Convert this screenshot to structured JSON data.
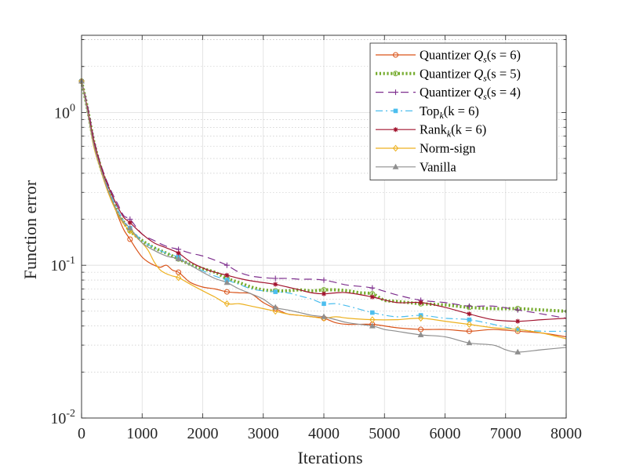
{
  "chart_data": {
    "type": "line",
    "xlabel": "Iterations",
    "ylabel": "Function error",
    "xlim": [
      0,
      8000
    ],
    "ylim": [
      0.01,
      3.2
    ],
    "yscale": "log",
    "grid": true,
    "legend_position": "top-right",
    "x_ticks": [
      0,
      1000,
      2000,
      3000,
      4000,
      5000,
      6000,
      7000,
      8000
    ],
    "x_tick_labels": [
      "0",
      "1000",
      "2000",
      "3000",
      "4000",
      "5000",
      "6000",
      "7000",
      "8000"
    ],
    "y_ticks": [
      {
        "value": 1,
        "base": "10",
        "exp": "0"
      },
      {
        "value": 0.1,
        "base": "10",
        "exp": "-1"
      },
      {
        "value": 0.01,
        "base": "10",
        "exp": "-2"
      }
    ],
    "series": [
      {
        "name": "Quantizer Qs(s = 6)",
        "legend_label": {
          "pre": "Quantizer ",
          "math": "Q",
          "sub": "s",
          "post": "(s = 6)"
        },
        "color": "#D95319",
        "style": "solid",
        "width": 1.2,
        "marker": "circle",
        "points": [
          [
            0,
            1.6
          ],
          [
            100,
            1.05
          ],
          [
            200,
            0.62
          ],
          [
            300,
            0.45
          ],
          [
            400,
            0.34
          ],
          [
            500,
            0.27
          ],
          [
            600,
            0.21
          ],
          [
            700,
            0.17
          ],
          [
            800,
            0.148
          ],
          [
            900,
            0.128
          ],
          [
            1000,
            0.113
          ],
          [
            1100,
            0.105
          ],
          [
            1200,
            0.1
          ],
          [
            1300,
            0.097
          ],
          [
            1400,
            0.1
          ],
          [
            1500,
            0.093
          ],
          [
            1600,
            0.09
          ],
          [
            1700,
            0.083
          ],
          [
            1800,
            0.077
          ],
          [
            2000,
            0.072
          ],
          [
            2200,
            0.07
          ],
          [
            2400,
            0.067
          ],
          [
            2600,
            0.066
          ],
          [
            2800,
            0.065
          ],
          [
            3000,
            0.057
          ],
          [
            3200,
            0.052
          ],
          [
            3400,
            0.048
          ],
          [
            3600,
            0.047
          ],
          [
            3800,
            0.046
          ],
          [
            4000,
            0.045
          ],
          [
            4200,
            0.042
          ],
          [
            4400,
            0.041
          ],
          [
            4800,
            0.041
          ],
          [
            5200,
            0.039
          ],
          [
            5600,
            0.038
          ],
          [
            6000,
            0.038
          ],
          [
            6400,
            0.037
          ],
          [
            6800,
            0.038
          ],
          [
            7200,
            0.037
          ],
          [
            7600,
            0.036
          ],
          [
            8000,
            0.034
          ]
        ]
      },
      {
        "name": "Quantizer Qs(s = 5)",
        "legend_label": {
          "pre": "Quantizer ",
          "math": "Q",
          "sub": "s",
          "post": "(s = 5)"
        },
        "color": "#77AC30",
        "style": "dotted",
        "width": 4,
        "marker": "circle",
        "points": [
          [
            0,
            1.6
          ],
          [
            100,
            1.05
          ],
          [
            200,
            0.65
          ],
          [
            300,
            0.46
          ],
          [
            400,
            0.35
          ],
          [
            500,
            0.28
          ],
          [
            600,
            0.22
          ],
          [
            700,
            0.19
          ],
          [
            800,
            0.168
          ],
          [
            1000,
            0.145
          ],
          [
            1200,
            0.13
          ],
          [
            1400,
            0.12
          ],
          [
            1600,
            0.11
          ],
          [
            1800,
            0.101
          ],
          [
            2000,
            0.095
          ],
          [
            2200,
            0.09
          ],
          [
            2400,
            0.082
          ],
          [
            2600,
            0.077
          ],
          [
            2800,
            0.072
          ],
          [
            3000,
            0.069
          ],
          [
            3200,
            0.068
          ],
          [
            3400,
            0.068
          ],
          [
            3600,
            0.069
          ],
          [
            3800,
            0.068
          ],
          [
            4000,
            0.069
          ],
          [
            4200,
            0.069
          ],
          [
            4400,
            0.068
          ],
          [
            4600,
            0.066
          ],
          [
            4800,
            0.065
          ],
          [
            5000,
            0.059
          ],
          [
            5200,
            0.058
          ],
          [
            5600,
            0.056
          ],
          [
            6000,
            0.055
          ],
          [
            6400,
            0.053
          ],
          [
            6800,
            0.052
          ],
          [
            7200,
            0.052
          ],
          [
            7600,
            0.051
          ],
          [
            8000,
            0.05
          ]
        ]
      },
      {
        "name": "Quantizer Qs(s = 4)",
        "legend_label": {
          "pre": "Quantizer ",
          "math": "Q",
          "sub": "s",
          "post": "(s = 4)"
        },
        "color": "#7E2F8E",
        "style": "dashed",
        "width": 1.2,
        "marker": "plus",
        "points": [
          [
            0,
            1.6
          ],
          [
            100,
            1.1
          ],
          [
            200,
            0.68
          ],
          [
            300,
            0.48
          ],
          [
            400,
            0.37
          ],
          [
            500,
            0.3
          ],
          [
            600,
            0.25
          ],
          [
            700,
            0.21
          ],
          [
            800,
            0.2
          ],
          [
            1000,
            0.16
          ],
          [
            1200,
            0.145
          ],
          [
            1400,
            0.133
          ],
          [
            1600,
            0.127
          ],
          [
            1800,
            0.12
          ],
          [
            2000,
            0.115
          ],
          [
            2200,
            0.108
          ],
          [
            2400,
            0.1
          ],
          [
            2600,
            0.09
          ],
          [
            2800,
            0.085
          ],
          [
            3000,
            0.083
          ],
          [
            3200,
            0.082
          ],
          [
            3400,
            0.082
          ],
          [
            3600,
            0.081
          ],
          [
            3800,
            0.081
          ],
          [
            4000,
            0.08
          ],
          [
            4200,
            0.077
          ],
          [
            4400,
            0.074
          ],
          [
            4800,
            0.071
          ],
          [
            5200,
            0.064
          ],
          [
            5600,
            0.059
          ],
          [
            6000,
            0.057
          ],
          [
            6400,
            0.054
          ],
          [
            6800,
            0.054
          ],
          [
            7200,
            0.051
          ],
          [
            7600,
            0.048
          ],
          [
            8000,
            0.045
          ]
        ]
      },
      {
        "name": "Topk(k = 6)",
        "legend_label": {
          "pre": "",
          "math": "Top",
          "sub": "k",
          "post": "(k = 6)"
        },
        "color": "#4DBEEE",
        "style": "dashdot",
        "width": 1.2,
        "marker": "square",
        "points": [
          [
            0,
            1.6
          ],
          [
            100,
            1.05
          ],
          [
            200,
            0.64
          ],
          [
            300,
            0.46
          ],
          [
            400,
            0.35
          ],
          [
            500,
            0.28
          ],
          [
            600,
            0.23
          ],
          [
            700,
            0.195
          ],
          [
            800,
            0.175
          ],
          [
            1000,
            0.145
          ],
          [
            1200,
            0.13
          ],
          [
            1400,
            0.12
          ],
          [
            1600,
            0.113
          ],
          [
            1800,
            0.1
          ],
          [
            2000,
            0.092
          ],
          [
            2200,
            0.085
          ],
          [
            2400,
            0.08
          ],
          [
            2600,
            0.075
          ],
          [
            2800,
            0.07
          ],
          [
            3000,
            0.068
          ],
          [
            3200,
            0.067
          ],
          [
            3400,
            0.066
          ],
          [
            3600,
            0.063
          ],
          [
            3800,
            0.06
          ],
          [
            4000,
            0.056
          ],
          [
            4200,
            0.056
          ],
          [
            4400,
            0.054
          ],
          [
            4800,
            0.049
          ],
          [
            5200,
            0.046
          ],
          [
            5600,
            0.047
          ],
          [
            6000,
            0.045
          ],
          [
            6400,
            0.044
          ],
          [
            6800,
            0.041
          ],
          [
            7200,
            0.038
          ],
          [
            7600,
            0.037
          ],
          [
            8000,
            0.037
          ]
        ]
      },
      {
        "name": "Rankk(k = 6)",
        "legend_label": {
          "pre": "",
          "math": "Rank",
          "sub": "k",
          "post": "(k = 6)"
        },
        "color": "#A2142F",
        "style": "solid",
        "width": 1.2,
        "marker": "star",
        "points": [
          [
            0,
            1.6
          ],
          [
            100,
            1.05
          ],
          [
            200,
            0.66
          ],
          [
            300,
            0.47
          ],
          [
            400,
            0.36
          ],
          [
            500,
            0.29
          ],
          [
            600,
            0.24
          ],
          [
            700,
            0.205
          ],
          [
            800,
            0.19
          ],
          [
            1000,
            0.16
          ],
          [
            1200,
            0.14
          ],
          [
            1400,
            0.13
          ],
          [
            1600,
            0.12
          ],
          [
            1800,
            0.105
          ],
          [
            2000,
            0.096
          ],
          [
            2200,
            0.09
          ],
          [
            2400,
            0.086
          ],
          [
            2600,
            0.082
          ],
          [
            2800,
            0.079
          ],
          [
            3000,
            0.077
          ],
          [
            3200,
            0.075
          ],
          [
            3400,
            0.072
          ],
          [
            3600,
            0.069
          ],
          [
            3800,
            0.066
          ],
          [
            4000,
            0.065
          ],
          [
            4200,
            0.066
          ],
          [
            4400,
            0.066
          ],
          [
            4800,
            0.062
          ],
          [
            5200,
            0.057
          ],
          [
            5600,
            0.057
          ],
          [
            6000,
            0.053
          ],
          [
            6400,
            0.048
          ],
          [
            6800,
            0.044
          ],
          [
            7200,
            0.043
          ],
          [
            7600,
            0.044
          ],
          [
            8000,
            0.045
          ]
        ]
      },
      {
        "name": "Norm-sign",
        "legend_label": {
          "pre": "Norm-sign",
          "math": "",
          "sub": "",
          "post": ""
        },
        "color": "#EDB120",
        "style": "solid",
        "width": 1.2,
        "marker": "diamond",
        "points": [
          [
            0,
            1.6
          ],
          [
            100,
            1.0
          ],
          [
            200,
            0.6
          ],
          [
            300,
            0.44
          ],
          [
            400,
            0.33
          ],
          [
            500,
            0.26
          ],
          [
            600,
            0.215
          ],
          [
            700,
            0.185
          ],
          [
            800,
            0.168
          ],
          [
            1000,
            0.14
          ],
          [
            1100,
            0.125
          ],
          [
            1200,
            0.105
          ],
          [
            1300,
            0.093
          ],
          [
            1400,
            0.088
          ],
          [
            1500,
            0.085
          ],
          [
            1600,
            0.083
          ],
          [
            1800,
            0.075
          ],
          [
            2000,
            0.068
          ],
          [
            2200,
            0.062
          ],
          [
            2400,
            0.056
          ],
          [
            2600,
            0.056
          ],
          [
            2800,
            0.054
          ],
          [
            3000,
            0.052
          ],
          [
            3200,
            0.05
          ],
          [
            3400,
            0.048
          ],
          [
            3600,
            0.047
          ],
          [
            3800,
            0.046
          ],
          [
            4000,
            0.045
          ],
          [
            4200,
            0.046
          ],
          [
            4400,
            0.045
          ],
          [
            4800,
            0.044
          ],
          [
            5200,
            0.044
          ],
          [
            5600,
            0.045
          ],
          [
            6000,
            0.043
          ],
          [
            6400,
            0.041
          ],
          [
            6800,
            0.039
          ],
          [
            7200,
            0.038
          ],
          [
            7600,
            0.036
          ],
          [
            8000,
            0.033
          ]
        ]
      },
      {
        "name": "Vanilla",
        "legend_label": {
          "pre": "Vanilla",
          "math": "",
          "sub": "",
          "post": ""
        },
        "color": "#8F8F8F",
        "style": "solid",
        "width": 1.2,
        "marker": "triangle",
        "points": [
          [
            0,
            1.6
          ],
          [
            100,
            1.0
          ],
          [
            200,
            0.62
          ],
          [
            300,
            0.45
          ],
          [
            400,
            0.34
          ],
          [
            500,
            0.27
          ],
          [
            600,
            0.22
          ],
          [
            700,
            0.19
          ],
          [
            800,
            0.175
          ],
          [
            1000,
            0.14
          ],
          [
            1200,
            0.125
          ],
          [
            1400,
            0.115
          ],
          [
            1600,
            0.11
          ],
          [
            1800,
            0.1
          ],
          [
            2000,
            0.09
          ],
          [
            2200,
            0.082
          ],
          [
            2400,
            0.077
          ],
          [
            2600,
            0.07
          ],
          [
            2800,
            0.065
          ],
          [
            3000,
            0.06
          ],
          [
            3200,
            0.053
          ],
          [
            3400,
            0.051
          ],
          [
            3600,
            0.049
          ],
          [
            3800,
            0.047
          ],
          [
            4000,
            0.046
          ],
          [
            4200,
            0.044
          ],
          [
            4400,
            0.042
          ],
          [
            4800,
            0.04
          ],
          [
            5000,
            0.038
          ],
          [
            5200,
            0.037
          ],
          [
            5600,
            0.035
          ],
          [
            6000,
            0.034
          ],
          [
            6400,
            0.031
          ],
          [
            6800,
            0.03
          ],
          [
            7000,
            0.028
          ],
          [
            7200,
            0.027
          ],
          [
            7600,
            0.028
          ],
          [
            8000,
            0.029
          ]
        ]
      }
    ]
  }
}
